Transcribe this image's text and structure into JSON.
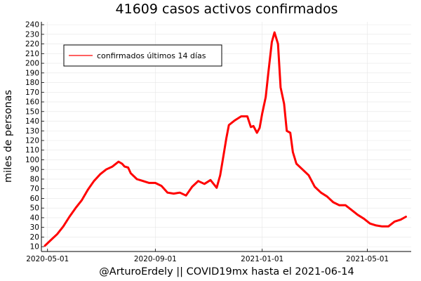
{
  "chart_data": {
    "type": "line",
    "title": "41609 casos activos confirmados",
    "xlabel": "@ArturoErdely || COVID19mx hasta el 2021-06-14",
    "ylabel": "miles de personas",
    "xlim": [
      "2020-04-24",
      "2021-06-20"
    ],
    "ylim": [
      5,
      243
    ],
    "x_ticks": [
      "2020-05-01",
      "2020-09-01",
      "2021-01-01",
      "2021-05-01"
    ],
    "y_ticks": [
      10,
      20,
      30,
      40,
      50,
      60,
      70,
      80,
      90,
      100,
      110,
      120,
      130,
      140,
      150,
      160,
      170,
      180,
      190,
      200,
      210,
      220,
      230,
      240
    ],
    "grid": true,
    "legend": {
      "position": "top-left"
    },
    "series": [
      {
        "name": "confirmados últimos 14 días",
        "color": "#ff0000",
        "x": [
          "2020-04-28",
          "2020-05-05",
          "2020-05-12",
          "2020-05-19",
          "2020-05-26",
          "2020-06-02",
          "2020-06-09",
          "2020-06-16",
          "2020-06-23",
          "2020-06-30",
          "2020-07-07",
          "2020-07-14",
          "2020-07-21",
          "2020-07-25",
          "2020-07-28",
          "2020-08-01",
          "2020-08-04",
          "2020-08-11",
          "2020-08-18",
          "2020-08-25",
          "2020-09-01",
          "2020-09-08",
          "2020-09-15",
          "2020-09-22",
          "2020-09-29",
          "2020-10-06",
          "2020-10-13",
          "2020-10-20",
          "2020-10-27",
          "2020-11-03",
          "2020-11-10",
          "2020-11-14",
          "2020-11-17",
          "2020-11-21",
          "2020-11-24",
          "2020-12-01",
          "2020-12-08",
          "2020-12-15",
          "2020-12-19",
          "2020-12-22",
          "2020-12-26",
          "2020-12-29",
          "2021-01-01",
          "2021-01-05",
          "2021-01-08",
          "2021-01-12",
          "2021-01-15",
          "2021-01-19",
          "2021-01-22",
          "2021-01-26",
          "2021-01-29",
          "2021-02-02",
          "2021-02-05",
          "2021-02-09",
          "2021-02-16",
          "2021-02-23",
          "2021-03-02",
          "2021-03-09",
          "2021-03-16",
          "2021-03-23",
          "2021-03-30",
          "2021-04-06",
          "2021-04-13",
          "2021-04-20",
          "2021-04-27",
          "2021-05-04",
          "2021-05-11",
          "2021-05-18",
          "2021-05-25",
          "2021-06-01",
          "2021-06-08",
          "2021-06-14"
        ],
        "y": [
          11,
          17,
          23,
          31,
          41,
          50,
          58,
          69,
          78,
          85,
          90,
          93,
          98,
          96,
          93,
          92,
          86,
          80,
          78,
          76,
          76,
          73,
          66,
          65,
          66,
          63,
          72,
          78,
          75,
          79,
          71,
          84,
          100,
          122,
          136,
          141,
          145,
          145,
          134,
          135,
          128,
          133,
          148,
          165,
          190,
          222,
          232,
          220,
          175,
          158,
          130,
          128,
          108,
          96,
          90,
          84,
          72,
          66,
          62,
          56,
          53,
          53,
          48,
          43,
          39,
          34,
          32,
          31,
          31,
          36,
          38,
          41
        ]
      }
    ]
  }
}
